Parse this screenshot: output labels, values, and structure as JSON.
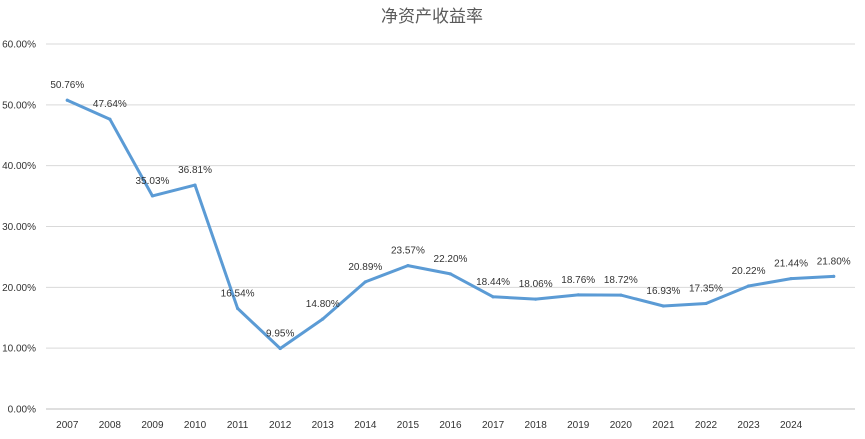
{
  "chart_data": {
    "type": "line",
    "title": "净资产收益率",
    "xlabel": "",
    "ylabel": "",
    "ylim": [
      0,
      60
    ],
    "yticks": [
      "0.00%",
      "10.00%",
      "20.00%",
      "30.00%",
      "40.00%",
      "50.00%",
      "60.00%"
    ],
    "categories": [
      "2007",
      "2008",
      "2009",
      "2010",
      "2011",
      "2012",
      "2013",
      "2014",
      "2015",
      "2016",
      "2017",
      "2018",
      "2019",
      "2020",
      "2021",
      "2022",
      "2023",
      "2024",
      ""
    ],
    "series": [
      {
        "values": [
          50.76,
          47.64,
          35.03,
          36.81,
          16.54,
          9.95,
          14.8,
          20.89,
          23.57,
          22.2,
          18.44,
          18.06,
          18.76,
          18.72,
          16.93,
          17.35,
          20.22,
          21.44,
          21.8
        ],
        "labels": [
          "50.76%",
          "47.64%",
          "35.03%",
          "36.81%",
          "16.54%",
          "9.95%",
          "14.80%",
          "20.89%",
          "23.57%",
          "22.20%",
          "18.44%",
          "18.06%",
          "18.76%",
          "18.72%",
          "16.93%",
          "17.35%",
          "20.22%",
          "21.44%",
          "21.80%"
        ],
        "color": "#5b9bd5"
      }
    ],
    "grid": true,
    "legend": "none"
  }
}
